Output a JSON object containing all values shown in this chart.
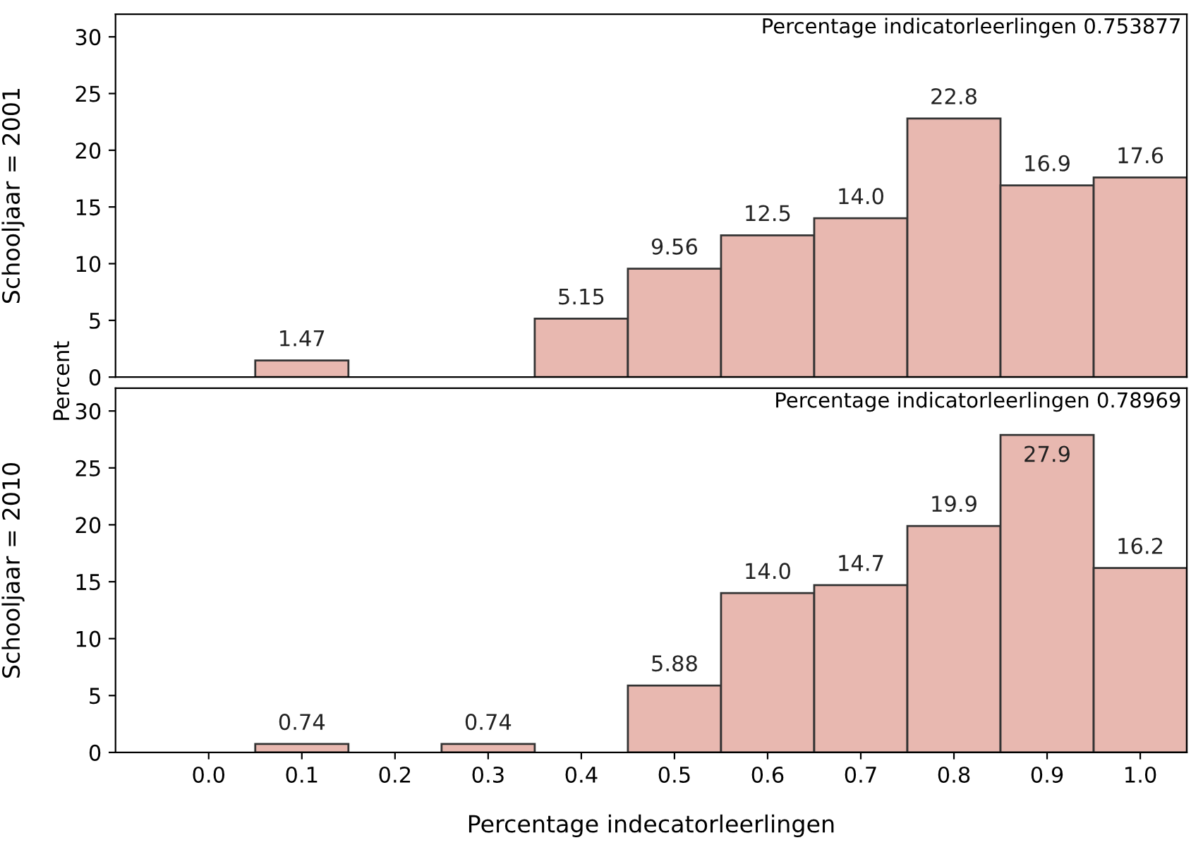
{
  "chart_data": [
    {
      "type": "histogram",
      "ylabel": "Schooljaar = 2001",
      "annotations": [
        "Percentage indicatorleerlingen 0.753877",
        "Percent"
      ],
      "bins": [
        -0.05,
        0.05,
        0.15,
        0.25,
        0.35,
        0.45,
        0.55,
        0.65,
        0.75,
        0.85,
        0.95,
        1.05
      ],
      "values": [
        null,
        1.47,
        null,
        null,
        5.15,
        9.56,
        12.5,
        14.0,
        22.8,
        16.9,
        17.6
      ],
      "value_labels": [
        null,
        "1.47",
        null,
        null,
        "5.15",
        "9.56",
        "12.5",
        "14.0",
        "22.8",
        "16.9",
        "17.6"
      ],
      "color": "#e8b8b0",
      "xlim": [
        -0.1,
        1.05
      ],
      "ylim": [
        0,
        32
      ],
      "yticks": [
        0,
        5,
        10,
        15,
        20,
        25,
        30
      ],
      "tick_labels": "y"
    },
    {
      "type": "histogram",
      "ylabel": "Schooljaar = 2010",
      "xlabel": "Percentage indecatorleerlingen",
      "annotations": [
        "Percentage indicatorleerlingen 0.78969"
      ],
      "bins": [
        -0.05,
        0.05,
        0.15,
        0.25,
        0.35,
        0.45,
        0.55,
        0.65,
        0.75,
        0.85,
        0.95,
        1.05
      ],
      "values": [
        null,
        0.74,
        null,
        0.74,
        null,
        5.88,
        14.0,
        14.7,
        19.9,
        27.9,
        16.2
      ],
      "value_labels": [
        null,
        "0.74",
        null,
        "0.74",
        null,
        "5.88",
        "14.0",
        "14.7",
        "19.9",
        "27.9",
        "16.2"
      ],
      "color": "#e8b8b0",
      "xlim": [
        -0.1,
        1.05
      ],
      "xticks": [
        {
          "value": 0.0,
          "label": "0.0"
        },
        {
          "value": 0.1,
          "label": "0.1"
        },
        {
          "value": 0.2,
          "label": "0.2"
        },
        {
          "value": 0.3,
          "label": "0.3"
        },
        {
          "value": 0.4,
          "label": "0.4"
        },
        {
          "value": 0.5,
          "label": "0.5"
        },
        {
          "value": 0.6,
          "label": "0.6"
        },
        {
          "value": 0.7,
          "label": "0.7"
        },
        {
          "value": 0.8,
          "label": "0.8"
        },
        {
          "value": 0.9,
          "label": "0.9"
        },
        {
          "value": 1.0,
          "label": "1.0"
        }
      ],
      "ylim": [
        0,
        32
      ],
      "yticks": [
        0,
        5,
        10,
        15,
        20,
        25,
        30
      ]
    }
  ]
}
